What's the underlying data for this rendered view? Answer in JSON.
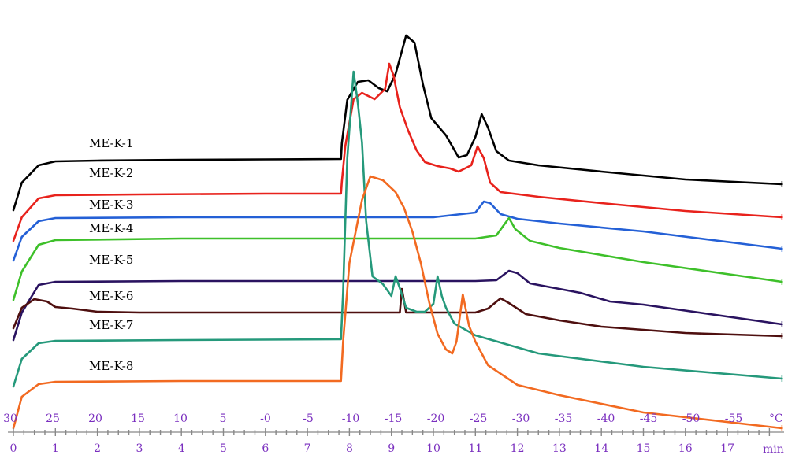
{
  "chart_data": {
    "type": "line",
    "title": "",
    "temperature_axis": {
      "unit": "°C",
      "ticks": [
        "30",
        "25",
        "20",
        "15",
        "10",
        "5",
        "-0",
        "-5",
        "-10",
        "-15",
        "-20",
        "-25",
        "-30",
        "-35",
        "-40",
        "-45",
        "-50",
        "-55"
      ]
    },
    "time_axis": {
      "unit": "min",
      "ticks": [
        "0",
        "1",
        "2",
        "3",
        "4",
        "5",
        "6",
        "7",
        "8",
        "9",
        "10",
        "11",
        "12",
        "13",
        "14",
        "15",
        "16",
        "17"
      ],
      "xlim": [
        0,
        18.3
      ]
    },
    "series": [
      {
        "name": "ME-K-1",
        "color": "#000000",
        "points": [
          [
            0,
            -65
          ],
          [
            0.2,
            -30
          ],
          [
            0.6,
            -8
          ],
          [
            1,
            -3
          ],
          [
            2,
            -2
          ],
          [
            4,
            -1
          ],
          [
            6,
            -0.5
          ],
          [
            7.8,
            0
          ],
          [
            7.82,
            20
          ],
          [
            7.95,
            75
          ],
          [
            8.2,
            98
          ],
          [
            8.45,
            100
          ],
          [
            8.7,
            90
          ],
          [
            8.9,
            86
          ],
          [
            9.1,
            108
          ],
          [
            9.35,
            157
          ],
          [
            9.55,
            148
          ],
          [
            9.75,
            95
          ],
          [
            9.95,
            52
          ],
          [
            10.3,
            30
          ],
          [
            10.6,
            2
          ],
          [
            10.8,
            5
          ],
          [
            11,
            28
          ],
          [
            11.15,
            57
          ],
          [
            11.3,
            40
          ],
          [
            11.5,
            10
          ],
          [
            11.8,
            -2
          ],
          [
            12.5,
            -8
          ],
          [
            14,
            -16
          ],
          [
            16,
            -26
          ],
          [
            18.3,
            -32
          ]
        ]
      },
      {
        "name": "ME-K-2",
        "color": "#e8221c",
        "points": [
          [
            0,
            -60
          ],
          [
            0.2,
            -30
          ],
          [
            0.6,
            -6
          ],
          [
            1,
            -2
          ],
          [
            3,
            -1
          ],
          [
            6,
            0
          ],
          [
            7.8,
            0
          ],
          [
            7.82,
            15
          ],
          [
            7.9,
            60
          ],
          [
            8.1,
            120
          ],
          [
            8.3,
            128
          ],
          [
            8.6,
            120
          ],
          [
            8.85,
            133
          ],
          [
            8.95,
            165
          ],
          [
            9.05,
            150
          ],
          [
            9.2,
            110
          ],
          [
            9.4,
            80
          ],
          [
            9.6,
            55
          ],
          [
            9.8,
            40
          ],
          [
            10.1,
            35
          ],
          [
            10.4,
            32
          ],
          [
            10.6,
            28
          ],
          [
            10.9,
            36
          ],
          [
            11.05,
            60
          ],
          [
            11.2,
            45
          ],
          [
            11.35,
            14
          ],
          [
            11.6,
            2
          ],
          [
            12.5,
            -4
          ],
          [
            14,
            -12
          ],
          [
            16,
            -22
          ],
          [
            18.3,
            -30
          ]
        ]
      },
      {
        "name": "ME-K-3",
        "color": "#2460d6",
        "points": [
          [
            0,
            -55
          ],
          [
            0.2,
            -25
          ],
          [
            0.6,
            -5
          ],
          [
            1,
            -1
          ],
          [
            4,
            0
          ],
          [
            10,
            0
          ],
          [
            11,
            6
          ],
          [
            11.2,
            20
          ],
          [
            11.35,
            18
          ],
          [
            11.6,
            4
          ],
          [
            12,
            -2
          ],
          [
            13,
            -8
          ],
          [
            15,
            -18
          ],
          [
            18.3,
            -40
          ]
        ]
      },
      {
        "name": "ME-K-4",
        "color": "#3ec02a",
        "points": [
          [
            0,
            -78
          ],
          [
            0.2,
            -42
          ],
          [
            0.6,
            -8
          ],
          [
            1,
            -2
          ],
          [
            4,
            0
          ],
          [
            11,
            0
          ],
          [
            11.5,
            4
          ],
          [
            11.8,
            26
          ],
          [
            11.95,
            12
          ],
          [
            12.3,
            -3
          ],
          [
            13,
            -12
          ],
          [
            15,
            -30
          ],
          [
            18.3,
            -55
          ]
        ]
      },
      {
        "name": "ME-K-5",
        "color": "#2a1360",
        "points": [
          [
            0,
            -75
          ],
          [
            0.2,
            -40
          ],
          [
            0.6,
            -5
          ],
          [
            1,
            -1
          ],
          [
            4,
            0
          ],
          [
            11,
            0
          ],
          [
            11.5,
            1
          ],
          [
            11.8,
            13
          ],
          [
            12,
            10
          ],
          [
            12.3,
            -3
          ],
          [
            13.5,
            -15
          ],
          [
            14.2,
            -26
          ],
          [
            15,
            -30
          ],
          [
            18.3,
            -55
          ]
        ]
      },
      {
        "name": "ME-K-6",
        "color": "#4e0f0f",
        "points": [
          [
            0,
            -20
          ],
          [
            0.2,
            6
          ],
          [
            0.5,
            17
          ],
          [
            0.8,
            14
          ],
          [
            1,
            7
          ],
          [
            1.4,
            5
          ],
          [
            2,
            1
          ],
          [
            3,
            0
          ],
          [
            5,
            0
          ],
          [
            8,
            0
          ],
          [
            9.2,
            0
          ],
          [
            9.25,
            30
          ],
          [
            9.35,
            0
          ],
          [
            10,
            0
          ],
          [
            11,
            0
          ],
          [
            11.3,
            5
          ],
          [
            11.6,
            18
          ],
          [
            11.8,
            12
          ],
          [
            12.2,
            -2
          ],
          [
            13,
            -10
          ],
          [
            14,
            -18
          ],
          [
            16,
            -26
          ],
          [
            18.3,
            -30
          ]
        ]
      },
      {
        "name": "ME-K-7",
        "color": "#25997b",
        "points": [
          [
            0,
            -60
          ],
          [
            0.2,
            -25
          ],
          [
            0.6,
            -5
          ],
          [
            1,
            -2
          ],
          [
            4,
            -1
          ],
          [
            7.8,
            0
          ],
          [
            7.85,
            60
          ],
          [
            7.95,
            230
          ],
          [
            8.1,
            340
          ],
          [
            8.2,
            300
          ],
          [
            8.3,
            250
          ],
          [
            8.4,
            150
          ],
          [
            8.55,
            80
          ],
          [
            8.8,
            70
          ],
          [
            9,
            55
          ],
          [
            9.1,
            80
          ],
          [
            9.2,
            65
          ],
          [
            9.35,
            40
          ],
          [
            9.6,
            35
          ],
          [
            9.8,
            35
          ],
          [
            10,
            45
          ],
          [
            10.1,
            80
          ],
          [
            10.2,
            55
          ],
          [
            10.3,
            40
          ],
          [
            10.5,
            20
          ],
          [
            11,
            5
          ],
          [
            12.5,
            -18
          ],
          [
            15,
            -35
          ],
          [
            18.3,
            -50
          ]
        ]
      },
      {
        "name": "ME-K-8",
        "color": "#f26a21",
        "points": [
          [
            0,
            -60
          ],
          [
            0.2,
            -20
          ],
          [
            0.6,
            -4
          ],
          [
            1,
            -1
          ],
          [
            4,
            0
          ],
          [
            7.8,
            0
          ],
          [
            7.85,
            50
          ],
          [
            8,
            150
          ],
          [
            8.3,
            230
          ],
          [
            8.5,
            260
          ],
          [
            8.8,
            255
          ],
          [
            9.1,
            240
          ],
          [
            9.3,
            220
          ],
          [
            9.5,
            190
          ],
          [
            9.7,
            150
          ],
          [
            9.9,
            100
          ],
          [
            10.1,
            60
          ],
          [
            10.3,
            40
          ],
          [
            10.45,
            35
          ],
          [
            10.55,
            50
          ],
          [
            10.7,
            110
          ],
          [
            10.85,
            70
          ],
          [
            11,
            50
          ],
          [
            11.3,
            20
          ],
          [
            12,
            -5
          ],
          [
            13,
            -18
          ],
          [
            15,
            -40
          ],
          [
            18.3,
            -60
          ]
        ]
      }
    ]
  }
}
